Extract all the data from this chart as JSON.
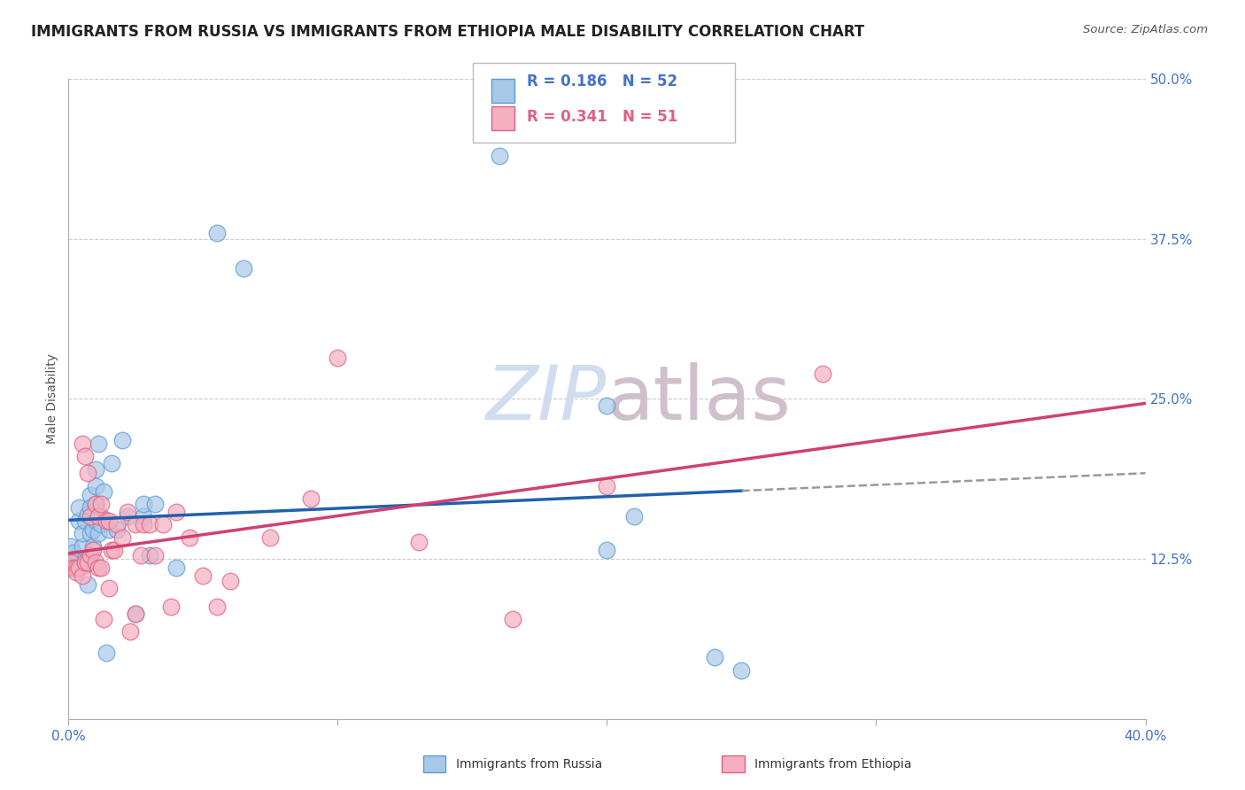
{
  "title": "IMMIGRANTS FROM RUSSIA VS IMMIGRANTS FROM ETHIOPIA MALE DISABILITY CORRELATION CHART",
  "source": "Source: ZipAtlas.com",
  "ylabel_label": "Male Disability",
  "xlim": [
    0.0,
    0.4
  ],
  "ylim": [
    0.0,
    0.5
  ],
  "russia_color": "#a8c8e8",
  "ethiopia_color": "#f4afc0",
  "russia_edge_color": "#5b9bd5",
  "ethiopia_edge_color": "#e06080",
  "russia_line_color": "#2060b0",
  "ethiopia_line_color": "#d04070",
  "dash_color": "#999999",
  "grid_color": "#cccccc",
  "tick_color": "#4472c4",
  "background_color": "#ffffff",
  "title_fontsize": 12,
  "axis_label_fontsize": 10,
  "tick_fontsize": 11,
  "legend_fontsize": 12,
  "legend_R_russia": "R = 0.186",
  "legend_N_russia": "N = 52",
  "legend_R_ethiopia": "R = 0.341",
  "legend_N_ethiopia": "N = 51",
  "russia_x": [
    0.001,
    0.001,
    0.002,
    0.002,
    0.003,
    0.003,
    0.004,
    0.004,
    0.004,
    0.005,
    0.005,
    0.005,
    0.006,
    0.006,
    0.006,
    0.007,
    0.007,
    0.007,
    0.008,
    0.008,
    0.008,
    0.009,
    0.009,
    0.01,
    0.01,
    0.01,
    0.01,
    0.011,
    0.011,
    0.012,
    0.012,
    0.013,
    0.014,
    0.015,
    0.016,
    0.018,
    0.02,
    0.022,
    0.025,
    0.028,
    0.028,
    0.03,
    0.032,
    0.04,
    0.055,
    0.065,
    0.16,
    0.2,
    0.2,
    0.21,
    0.24,
    0.25
  ],
  "russia_y": [
    0.125,
    0.135,
    0.125,
    0.13,
    0.12,
    0.125,
    0.125,
    0.155,
    0.165,
    0.12,
    0.135,
    0.145,
    0.12,
    0.125,
    0.155,
    0.105,
    0.125,
    0.16,
    0.175,
    0.165,
    0.145,
    0.135,
    0.148,
    0.155,
    0.168,
    0.182,
    0.195,
    0.215,
    0.145,
    0.152,
    0.158,
    0.178,
    0.052,
    0.148,
    0.2,
    0.148,
    0.218,
    0.158,
    0.082,
    0.158,
    0.168,
    0.128,
    0.168,
    0.118,
    0.38,
    0.352,
    0.44,
    0.132,
    0.245,
    0.158,
    0.048,
    0.038
  ],
  "ethiopia_x": [
    0.001,
    0.001,
    0.002,
    0.003,
    0.003,
    0.004,
    0.005,
    0.005,
    0.006,
    0.006,
    0.007,
    0.007,
    0.008,
    0.008,
    0.009,
    0.01,
    0.01,
    0.011,
    0.011,
    0.012,
    0.012,
    0.013,
    0.014,
    0.015,
    0.015,
    0.016,
    0.017,
    0.018,
    0.02,
    0.022,
    0.023,
    0.025,
    0.025,
    0.027,
    0.028,
    0.03,
    0.032,
    0.035,
    0.038,
    0.04,
    0.045,
    0.05,
    0.055,
    0.06,
    0.075,
    0.09,
    0.1,
    0.13,
    0.165,
    0.2,
    0.28
  ],
  "ethiopia_y": [
    0.118,
    0.122,
    0.118,
    0.118,
    0.115,
    0.118,
    0.112,
    0.215,
    0.122,
    0.205,
    0.122,
    0.192,
    0.128,
    0.158,
    0.132,
    0.122,
    0.168,
    0.118,
    0.158,
    0.118,
    0.168,
    0.078,
    0.155,
    0.155,
    0.102,
    0.132,
    0.132,
    0.152,
    0.142,
    0.162,
    0.068,
    0.152,
    0.082,
    0.128,
    0.152,
    0.152,
    0.128,
    0.152,
    0.088,
    0.162,
    0.142,
    0.112,
    0.088,
    0.108,
    0.142,
    0.172,
    0.282,
    0.138,
    0.078,
    0.182,
    0.27
  ]
}
